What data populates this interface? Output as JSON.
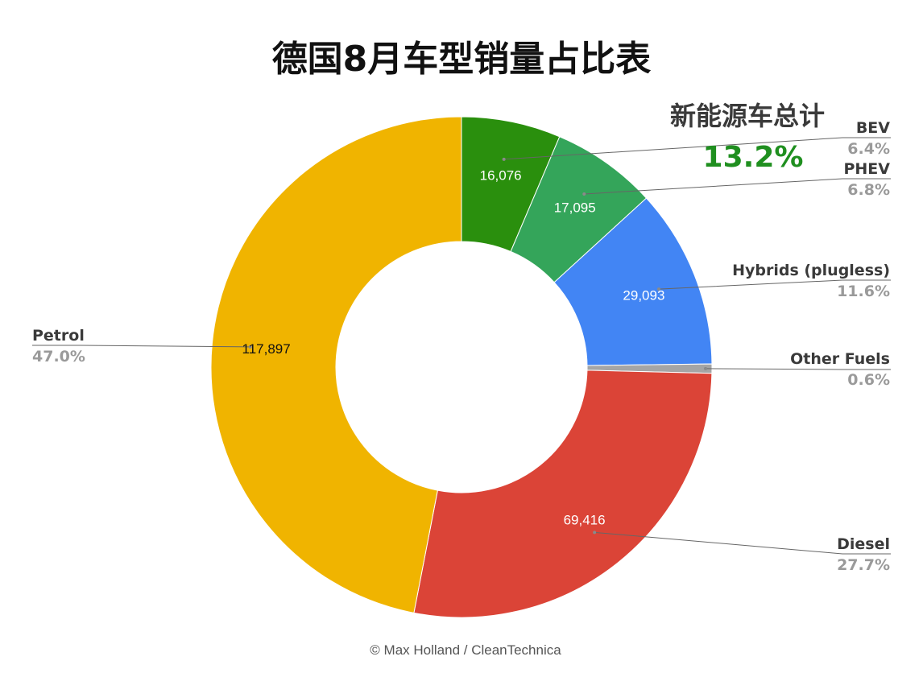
{
  "title": "德国8月车型销量占比表",
  "nev_total": {
    "label": "新能源车总计",
    "value": "13.2%"
  },
  "credit": "© Max Holland / CleanTechnica",
  "chart_data": {
    "type": "pie",
    "donut": true,
    "slices": [
      {
        "name": "BEV",
        "value": 16076,
        "value_label": "16,076",
        "percent_label": "6.4%",
        "color": "#2a8f0d"
      },
      {
        "name": "PHEV",
        "value": 17095,
        "value_label": "17,095",
        "percent_label": "6.8%",
        "color": "#34a55a"
      },
      {
        "name": "Hybrids (plugless)",
        "value": 29093,
        "value_label": "29,093",
        "percent_label": "11.6%",
        "color": "#4285f4"
      },
      {
        "name": "Other Fuels",
        "value": 1500,
        "value_label": "",
        "percent_label": "0.6%",
        "color": "#a5a5a5"
      },
      {
        "name": "Diesel",
        "value": 69416,
        "value_label": "69,416",
        "percent_label": "27.7%",
        "color": "#db4437"
      },
      {
        "name": "Petrol",
        "value": 117897,
        "value_label": "117,897",
        "percent_label": "47.0%",
        "color": "#f0b400"
      }
    ]
  }
}
